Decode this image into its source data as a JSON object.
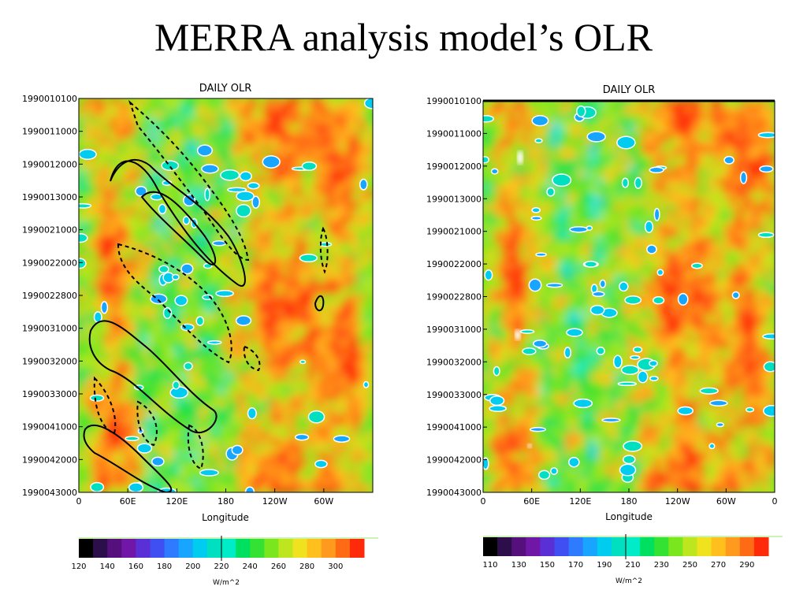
{
  "slide": {
    "title": "MERRA analysis model’s OLR"
  },
  "colors": {
    "palette": [
      "#000000",
      "#2c0f4a",
      "#56107d",
      "#7017a8",
      "#5b2fd6",
      "#3f4ff2",
      "#2e7bff",
      "#18a5ff",
      "#00ccf0",
      "#00e0c0",
      "#00ecc8",
      "#00e060",
      "#33e233",
      "#7ae61e",
      "#bde61e",
      "#f0e21e",
      "#ffc01e",
      "#ff9a1e",
      "#ff6a14",
      "#ff2a0a",
      "#e81010"
    ],
    "contour_white": "#ffffff",
    "contour_black": "#000000"
  },
  "chart_data": [
    {
      "type": "heatmap",
      "title": "DAILY OLR",
      "xlabel": "Longitude",
      "x_ticks": [
        "0",
        "60E",
        "120E",
        "180",
        "120W",
        "60W"
      ],
      "y_ticks": [
        "1990010100",
        "1990011000",
        "1990012000",
        "1990013000",
        "1990021000",
        "1990022000",
        "1990022800",
        "1990031000",
        "1990032000",
        "1990033000",
        "1990041000",
        "1990042000",
        "1990043000"
      ],
      "colorbar": {
        "ticks": [
          "120",
          "140",
          "160",
          "180",
          "200",
          "220",
          "240",
          "260",
          "280",
          "300"
        ],
        "units": "W/m^2",
        "range": [
          120,
          300
        ]
      },
      "overlay_contours": true
    },
    {
      "type": "heatmap",
      "title": "DAILY OLR",
      "xlabel": "Longitude",
      "x_ticks": [
        "0",
        "60E",
        "120E",
        "180",
        "120W",
        "60W",
        "0"
      ],
      "y_ticks": [
        "1990010100",
        "1990011000",
        "1990012000",
        "1990013000",
        "1990021000",
        "1990022000",
        "1990022800",
        "1990031000",
        "1990032000",
        "1990033000",
        "1990041000",
        "1990042000",
        "1990043000"
      ],
      "colorbar": {
        "ticks": [
          "110",
          "130",
          "150",
          "170",
          "190",
          "210",
          "230",
          "250",
          "270",
          "290"
        ],
        "units": "W/m^2",
        "range": [
          110,
          300
        ]
      },
      "overlay_contours": false
    }
  ]
}
